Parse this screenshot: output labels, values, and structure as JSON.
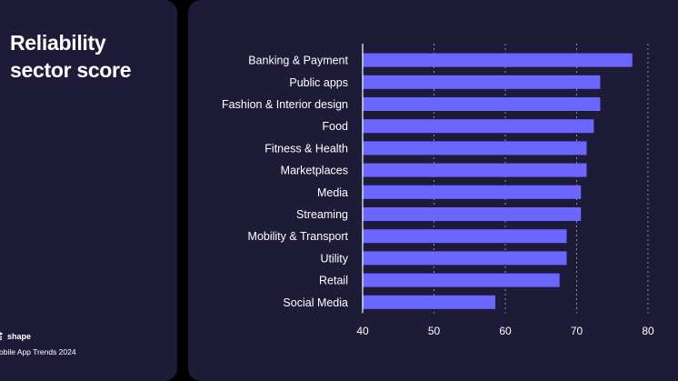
{
  "left_panel": {
    "title_lines": [
      "Reliability",
      "sector score"
    ],
    "brand_name": "shape",
    "report_name": "obile App Trends 2024",
    "logo_icon": "shape-logo-icon"
  },
  "colors": {
    "background": "#000000",
    "panel": "#1e1b38",
    "bar": "#6a66ff",
    "text": "#ffffff",
    "grid": "#8d8aa8"
  },
  "chart_data": {
    "type": "bar",
    "orientation": "horizontal",
    "title": "",
    "xlabel": "",
    "ylabel": "",
    "xlim": [
      40,
      80
    ],
    "xticks": [
      40,
      50,
      60,
      70,
      80
    ],
    "grid": "vertical dashed",
    "categories": [
      "Banking & Payment",
      "Public apps",
      "Fashion & Interior design",
      "Food",
      "Fitness & Health",
      "Marketplaces",
      "Media",
      "Streaming",
      "Mobility & Transport",
      "Utility",
      "Retail",
      "Social Media"
    ],
    "values": [
      77.8,
      73.3,
      73.3,
      72.4,
      71.4,
      71.4,
      70.6,
      70.6,
      68.6,
      68.6,
      67.6,
      58.6
    ]
  }
}
